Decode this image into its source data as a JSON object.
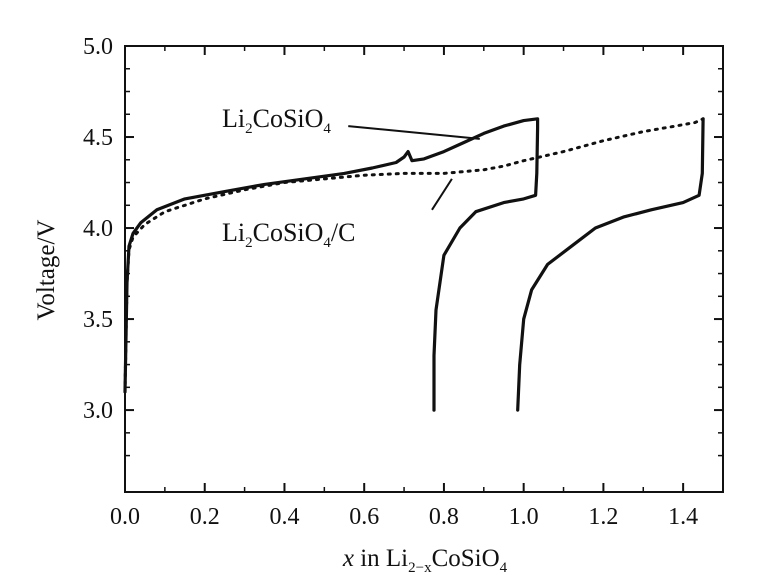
{
  "chart_data": {
    "type": "line",
    "title": "",
    "ylabel": "Voltage/V",
    "xlabel": {
      "italic": "x",
      "pre": " in Li",
      "sub": "2−x",
      "post": "CoSiO",
      "sub2": "4"
    },
    "xlim": [
      0.0,
      1.5
    ],
    "ylim": [
      2.55,
      5.0
    ],
    "x_ticks": [
      "0.0",
      "0.2",
      "0.4",
      "0.6",
      "0.8",
      "1.0",
      "1.2",
      "1.4"
    ],
    "x_tick_values": [
      0.0,
      0.2,
      0.4,
      0.6,
      0.8,
      1.0,
      1.2,
      1.4
    ],
    "y_ticks": [
      "3.0",
      "3.5",
      "4.0",
      "4.5",
      "5.0"
    ],
    "y_tick_values": [
      3.0,
      3.5,
      4.0,
      4.5,
      5.0
    ],
    "grid": false,
    "legend": "none",
    "annotations": [
      {
        "text": "Li",
        "sub": "2",
        "post": "CoSiO",
        "sub2": "4",
        "suffix": ""
      },
      {
        "text": "Li",
        "sub": "2",
        "post": "CoSiO",
        "sub2": "4",
        "suffix": "/C"
      }
    ],
    "series": [
      {
        "style": "solid",
        "color": "#111111",
        "segments": [
          [
            [
              0.0,
              3.1
            ],
            [
              0.005,
              3.7
            ],
            [
              0.01,
              3.9
            ],
            [
              0.02,
              3.97
            ],
            [
              0.04,
              4.03
            ],
            [
              0.08,
              4.1
            ],
            [
              0.15,
              4.16
            ],
            [
              0.25,
              4.2
            ],
            [
              0.35,
              4.24
            ],
            [
              0.45,
              4.27
            ],
            [
              0.55,
              4.3
            ],
            [
              0.62,
              4.33
            ],
            [
              0.68,
              4.36
            ],
            [
              0.7,
              4.39
            ],
            [
              0.71,
              4.42
            ],
            [
              0.72,
              4.37
            ],
            [
              0.75,
              4.38
            ],
            [
              0.8,
              4.42
            ],
            [
              0.85,
              4.47
            ],
            [
              0.9,
              4.52
            ],
            [
              0.95,
              4.56
            ],
            [
              1.0,
              4.59
            ],
            [
              1.035,
              4.6
            ],
            [
              1.035,
              4.55
            ],
            [
              1.033,
              4.3
            ],
            [
              1.03,
              4.18
            ],
            [
              1.0,
              4.16
            ],
            [
              0.95,
              4.14
            ],
            [
              0.88,
              4.09
            ],
            [
              0.84,
              4.0
            ],
            [
              0.8,
              3.85
            ],
            [
              0.78,
              3.55
            ],
            [
              0.775,
              3.3
            ],
            [
              0.775,
              3.0
            ]
          ]
        ]
      },
      {
        "style": "dotted",
        "color": "#111111",
        "segments": [
          [
            [
              0.0,
              3.1
            ],
            [
              0.005,
              3.7
            ],
            [
              0.01,
              3.88
            ],
            [
              0.02,
              3.95
            ],
            [
              0.05,
              4.02
            ],
            [
              0.1,
              4.09
            ],
            [
              0.2,
              4.16
            ],
            [
              0.3,
              4.21
            ],
            [
              0.4,
              4.25
            ],
            [
              0.5,
              4.27
            ],
            [
              0.6,
              4.29
            ],
            [
              0.7,
              4.3
            ],
            [
              0.8,
              4.3
            ],
            [
              0.9,
              4.32
            ],
            [
              0.95,
              4.34
            ],
            [
              1.0,
              4.37
            ],
            [
              1.1,
              4.42
            ],
            [
              1.2,
              4.48
            ],
            [
              1.3,
              4.53
            ],
            [
              1.38,
              4.56
            ],
            [
              1.43,
              4.58
            ],
            [
              1.45,
              4.6
            ]
          ]
        ]
      },
      {
        "style": "solid",
        "color": "#111111",
        "segments": [
          [
            [
              1.45,
              4.6
            ],
            [
              1.448,
              4.3
            ],
            [
              1.44,
              4.18
            ],
            [
              1.4,
              4.14
            ],
            [
              1.32,
              4.1
            ],
            [
              1.25,
              4.06
            ],
            [
              1.18,
              4.0
            ],
            [
              1.12,
              3.9
            ],
            [
              1.06,
              3.8
            ],
            [
              1.02,
              3.66
            ],
            [
              1.0,
              3.5
            ],
            [
              0.99,
              3.25
            ],
            [
              0.985,
              3.0
            ]
          ]
        ]
      }
    ],
    "leaders": [
      [
        [
          0.56,
          4.56
        ],
        [
          0.89,
          4.49
        ]
      ],
      [
        [
          0.77,
          4.1
        ],
        [
          0.82,
          4.27
        ]
      ]
    ]
  }
}
